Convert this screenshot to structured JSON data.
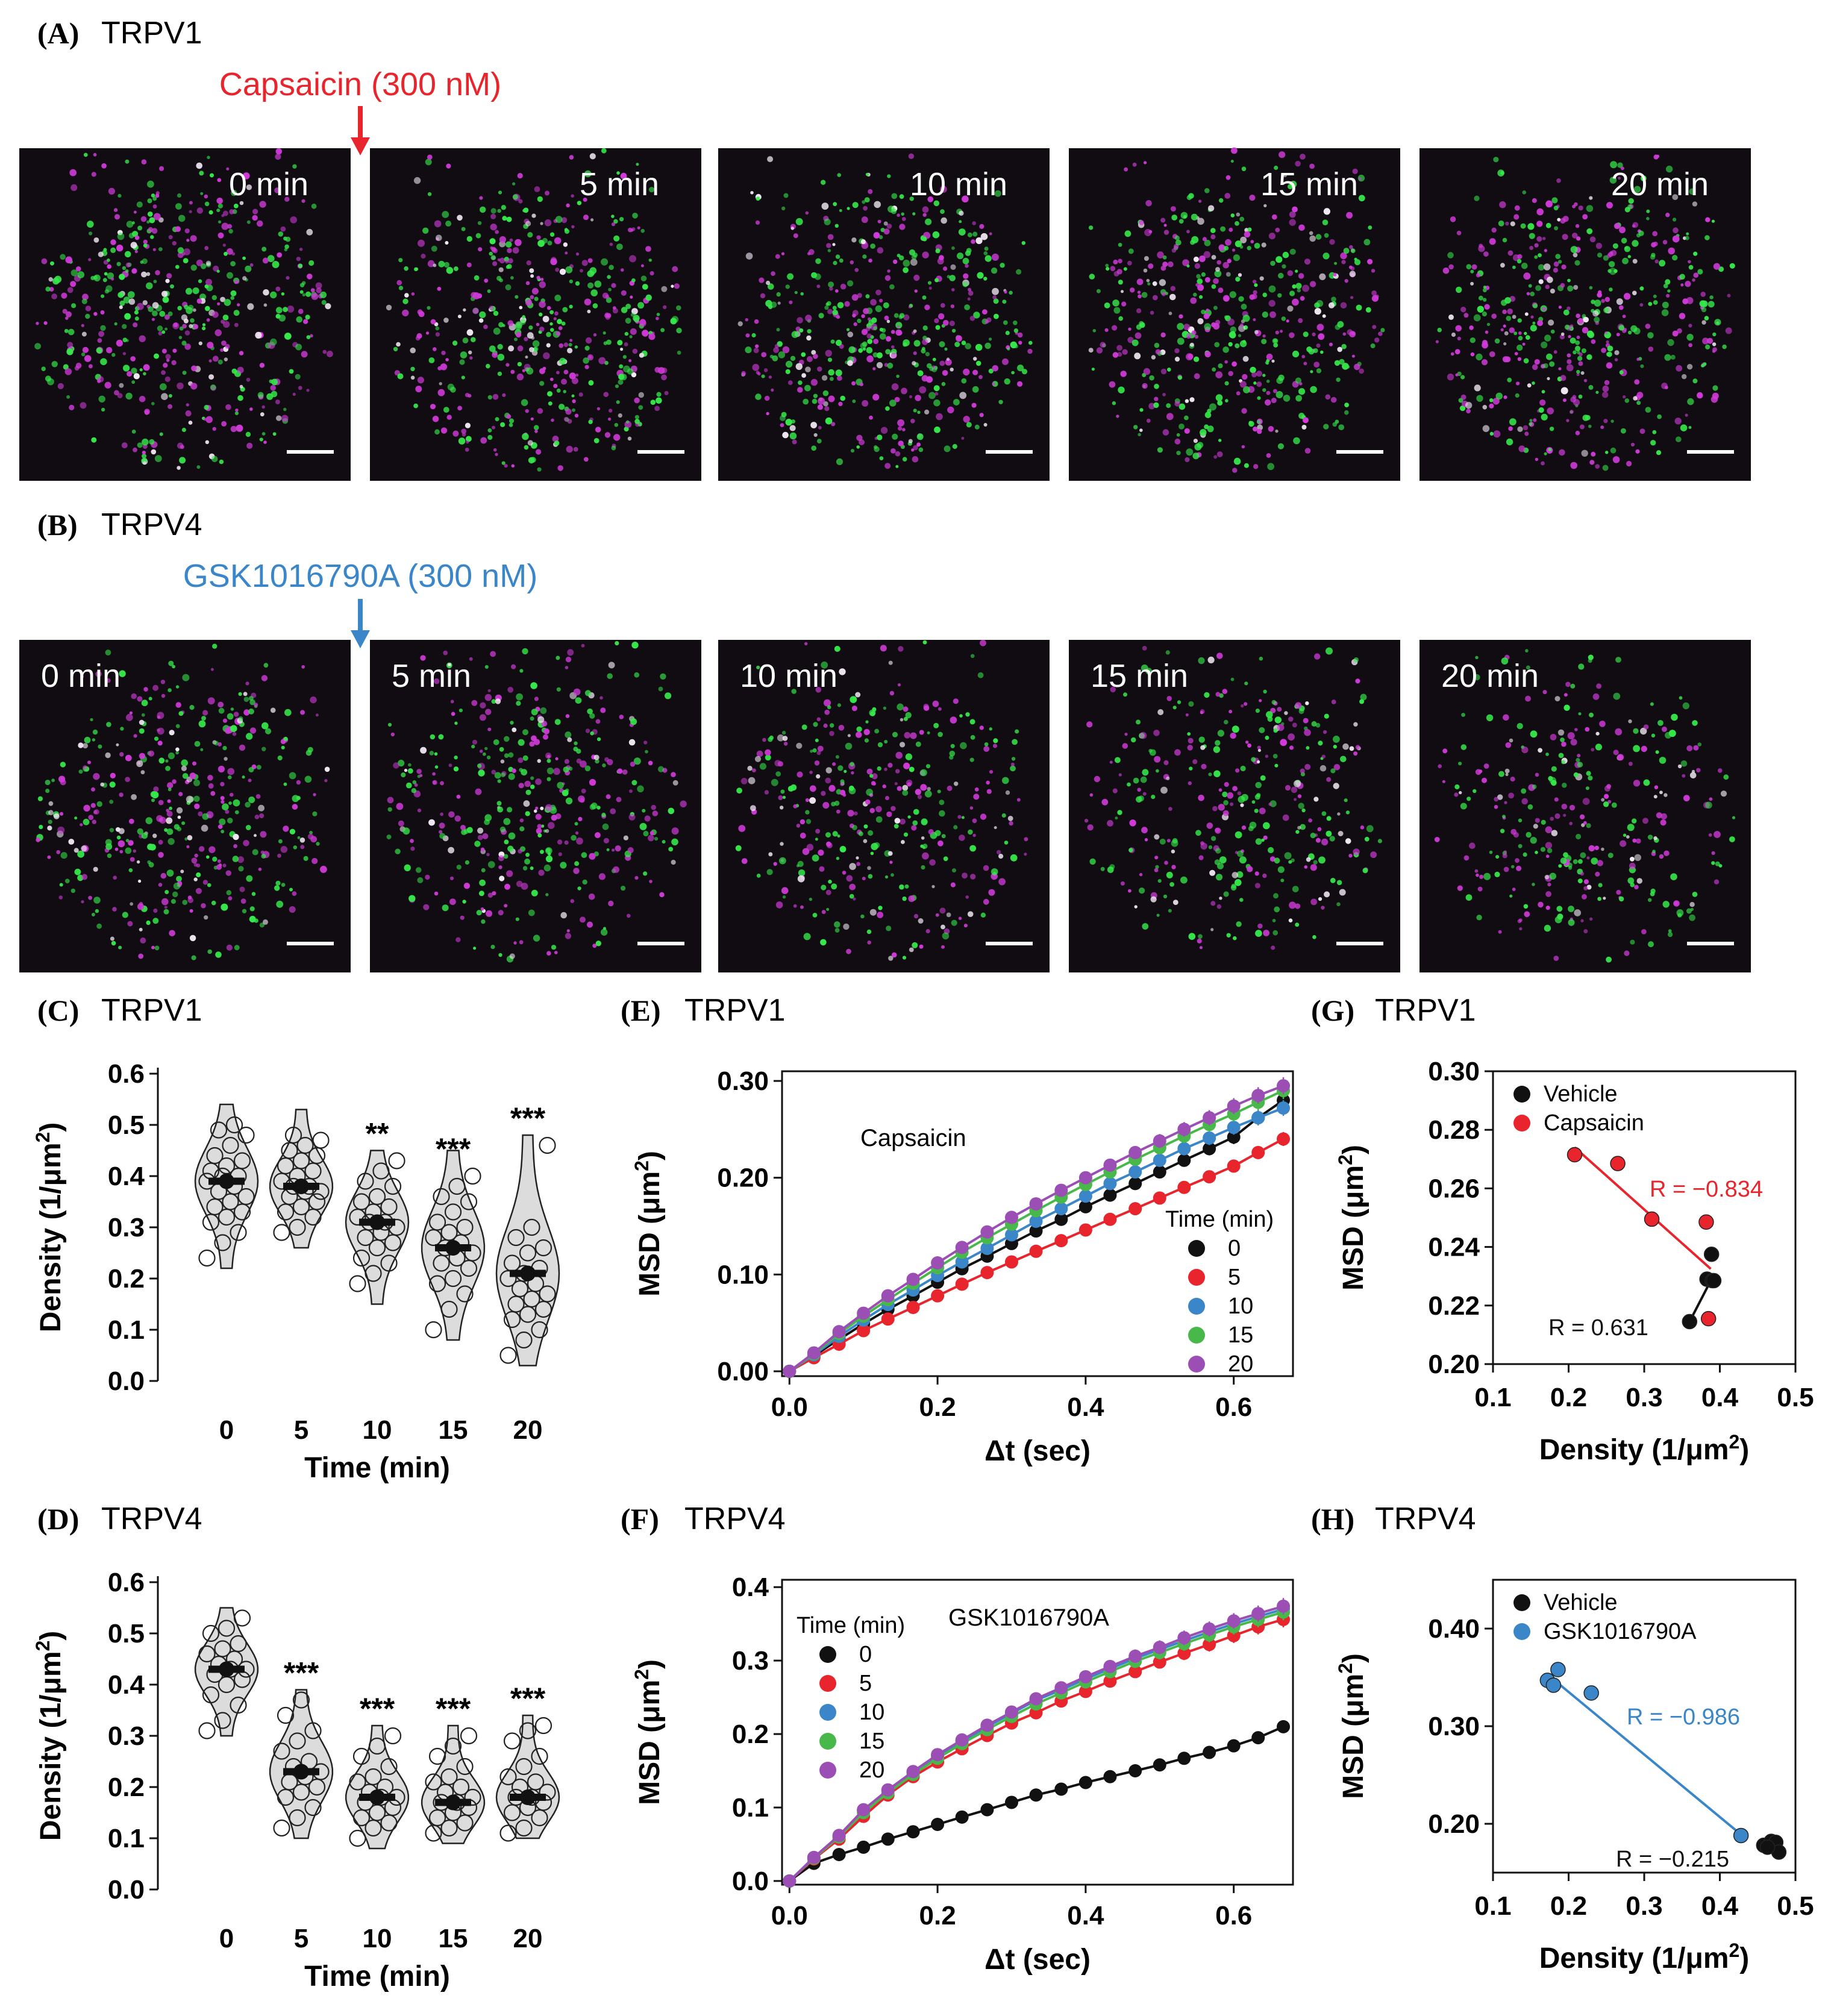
{
  "panel_a": {
    "label": "(A)",
    "title": "TRPV1",
    "stimulus": "Capsaicin (300 nM)",
    "stimulus_color": "#e8242c",
    "frames": [
      "0 min",
      "5 min",
      "10 min",
      "15 min",
      "20 min"
    ]
  },
  "panel_b": {
    "label": "(B)",
    "title": "TRPV4",
    "stimulus": "GSK1016790A (300 nM)",
    "stimulus_color": "#3a86c8",
    "frames": [
      "0 min",
      "5 min",
      "10 min",
      "15 min",
      "20 min"
    ]
  },
  "colors": {
    "green": "#36e84a",
    "magenta": "#d03ad8",
    "image_bg": "#100c12",
    "black": "#111111",
    "red": "#e8242c",
    "blue": "#3a86c8",
    "green_series": "#48b84a",
    "purple": "#9b4fb5"
  },
  "chart_data": [
    {
      "id": "C",
      "panel_label": "(C)",
      "panel_title": "TRPV1",
      "type": "violin",
      "xlabel": "Time (min)",
      "ylabel": "Density (1/μm²)",
      "categories": [
        "0",
        "5",
        "10",
        "15",
        "20"
      ],
      "yticks": [
        "0.0",
        "0.1",
        "0.2",
        "0.3",
        "0.4",
        "0.5",
        "0.6"
      ],
      "ylim": [
        0,
        0.6
      ],
      "means": [
        0.39,
        0.38,
        0.31,
        0.26,
        0.21
      ],
      "violin_range": [
        [
          0.22,
          0.54
        ],
        [
          0.26,
          0.53
        ],
        [
          0.15,
          0.45
        ],
        [
          0.08,
          0.45
        ],
        [
          0.03,
          0.48
        ]
      ],
      "significance": [
        "",
        "",
        "**",
        "***",
        "***"
      ],
      "points": [
        [
          0.24,
          0.27,
          0.29,
          0.31,
          0.32,
          0.33,
          0.34,
          0.35,
          0.36,
          0.37,
          0.38,
          0.39,
          0.4,
          0.4,
          0.41,
          0.42,
          0.43,
          0.44,
          0.46,
          0.48,
          0.49,
          0.5
        ],
        [
          0.29,
          0.3,
          0.32,
          0.33,
          0.34,
          0.35,
          0.36,
          0.37,
          0.37,
          0.38,
          0.38,
          0.39,
          0.4,
          0.41,
          0.42,
          0.43,
          0.44,
          0.45,
          0.46,
          0.47,
          0.48
        ],
        [
          0.19,
          0.21,
          0.23,
          0.24,
          0.26,
          0.27,
          0.28,
          0.29,
          0.3,
          0.31,
          0.31,
          0.32,
          0.33,
          0.34,
          0.35,
          0.36,
          0.38,
          0.39,
          0.41,
          0.43
        ],
        [
          0.1,
          0.14,
          0.17,
          0.19,
          0.2,
          0.22,
          0.23,
          0.24,
          0.25,
          0.26,
          0.27,
          0.28,
          0.29,
          0.3,
          0.31,
          0.33,
          0.35,
          0.36,
          0.38,
          0.4
        ],
        [
          0.05,
          0.08,
          0.1,
          0.12,
          0.13,
          0.14,
          0.15,
          0.16,
          0.17,
          0.18,
          0.19,
          0.2,
          0.21,
          0.22,
          0.23,
          0.25,
          0.26,
          0.28,
          0.3,
          0.46
        ]
      ]
    },
    {
      "id": "D",
      "panel_label": "(D)",
      "panel_title": "TRPV4",
      "type": "violin",
      "xlabel": "Time (min)",
      "ylabel": "Density (1/μm²)",
      "categories": [
        "0",
        "5",
        "10",
        "15",
        "20"
      ],
      "yticks": [
        "0.0",
        "0.1",
        "0.2",
        "0.3",
        "0.4",
        "0.5",
        "0.6"
      ],
      "ylim": [
        0,
        0.6
      ],
      "means": [
        0.43,
        0.23,
        0.18,
        0.17,
        0.18
      ],
      "violin_range": [
        [
          0.3,
          0.55
        ],
        [
          0.1,
          0.39
        ],
        [
          0.08,
          0.32
        ],
        [
          0.09,
          0.32
        ],
        [
          0.1,
          0.34
        ]
      ],
      "significance": [
        "",
        "***",
        "***",
        "***",
        "***"
      ],
      "points": [
        [
          0.31,
          0.33,
          0.36,
          0.38,
          0.4,
          0.41,
          0.42,
          0.43,
          0.43,
          0.44,
          0.45,
          0.46,
          0.47,
          0.48,
          0.5,
          0.51,
          0.53
        ],
        [
          0.12,
          0.14,
          0.16,
          0.18,
          0.19,
          0.2,
          0.21,
          0.22,
          0.23,
          0.24,
          0.25,
          0.27,
          0.29,
          0.31,
          0.34,
          0.37
        ],
        [
          0.1,
          0.12,
          0.13,
          0.14,
          0.15,
          0.16,
          0.17,
          0.18,
          0.18,
          0.19,
          0.2,
          0.21,
          0.22,
          0.24,
          0.26,
          0.28,
          0.3
        ],
        [
          0.11,
          0.12,
          0.13,
          0.14,
          0.15,
          0.16,
          0.17,
          0.17,
          0.18,
          0.19,
          0.2,
          0.21,
          0.22,
          0.24,
          0.26,
          0.28,
          0.3
        ],
        [
          0.11,
          0.12,
          0.14,
          0.15,
          0.16,
          0.17,
          0.18,
          0.18,
          0.19,
          0.2,
          0.21,
          0.22,
          0.24,
          0.26,
          0.29,
          0.31,
          0.32
        ]
      ]
    },
    {
      "id": "E",
      "panel_label": "(E)",
      "panel_title": "TRPV1",
      "type": "line",
      "xlabel": "Δt (sec)",
      "ylabel": "MSD (μm²)",
      "annotation": "Capsaicin",
      "legend_title": "Time (min)",
      "xticks": [
        "0.0",
        "0.2",
        "0.4",
        "0.6"
      ],
      "xlim": [
        -0.01,
        0.68
      ],
      "yticks": [
        "0.00",
        "0.10",
        "0.20",
        "0.30"
      ],
      "ylim": [
        -0.005,
        0.31
      ],
      "x": [
        0,
        0.033,
        0.067,
        0.1,
        0.133,
        0.167,
        0.2,
        0.233,
        0.267,
        0.3,
        0.333,
        0.367,
        0.4,
        0.433,
        0.467,
        0.5,
        0.533,
        0.567,
        0.6,
        0.633,
        0.667
      ],
      "series": [
        {
          "name": "0",
          "color": "#111111",
          "values": [
            0,
            0.016,
            0.033,
            0.049,
            0.064,
            0.078,
            0.092,
            0.106,
            0.119,
            0.132,
            0.145,
            0.157,
            0.17,
            0.182,
            0.194,
            0.206,
            0.218,
            0.23,
            0.242,
            0.262,
            0.28
          ]
        },
        {
          "name": "5",
          "color": "#e8242c",
          "values": [
            0,
            0.014,
            0.028,
            0.042,
            0.054,
            0.066,
            0.078,
            0.09,
            0.102,
            0.113,
            0.124,
            0.135,
            0.146,
            0.157,
            0.168,
            0.179,
            0.19,
            0.201,
            0.212,
            0.226,
            0.24
          ]
        },
        {
          "name": "10",
          "color": "#3a86c8",
          "values": [
            0,
            0.017,
            0.036,
            0.053,
            0.069,
            0.084,
            0.099,
            0.113,
            0.127,
            0.141,
            0.155,
            0.168,
            0.181,
            0.194,
            0.206,
            0.218,
            0.23,
            0.241,
            0.252,
            0.262,
            0.272
          ]
        },
        {
          "name": "15",
          "color": "#48b84a",
          "values": [
            0,
            0.018,
            0.039,
            0.057,
            0.074,
            0.091,
            0.107,
            0.123,
            0.138,
            0.152,
            0.166,
            0.18,
            0.193,
            0.206,
            0.219,
            0.231,
            0.243,
            0.255,
            0.266,
            0.278,
            0.29
          ]
        },
        {
          "name": "20",
          "color": "#9b4fb5",
          "values": [
            0,
            0.019,
            0.041,
            0.06,
            0.078,
            0.095,
            0.112,
            0.128,
            0.144,
            0.159,
            0.173,
            0.187,
            0.2,
            0.213,
            0.226,
            0.238,
            0.25,
            0.262,
            0.274,
            0.285,
            0.295
          ]
        }
      ]
    },
    {
      "id": "F",
      "panel_label": "(F)",
      "panel_title": "TRPV4",
      "type": "line",
      "xlabel": "Δt (sec)",
      "ylabel": "MSD (μm²)",
      "annotation": "GSK1016790A",
      "legend_title": "Time (min)",
      "xticks": [
        "0.0",
        "0.2",
        "0.4",
        "0.6"
      ],
      "xlim": [
        -0.01,
        0.68
      ],
      "yticks": [
        "0.0",
        "0.1",
        "0.2",
        "0.3",
        "0.4"
      ],
      "ylim": [
        -0.005,
        0.41
      ],
      "x": [
        0,
        0.033,
        0.067,
        0.1,
        0.133,
        0.167,
        0.2,
        0.233,
        0.267,
        0.3,
        0.333,
        0.367,
        0.4,
        0.433,
        0.467,
        0.5,
        0.533,
        0.567,
        0.6,
        0.633,
        0.667
      ],
      "series": [
        {
          "name": "0",
          "color": "#111111",
          "values": [
            0,
            0.024,
            0.036,
            0.046,
            0.057,
            0.067,
            0.077,
            0.087,
            0.097,
            0.107,
            0.117,
            0.125,
            0.134,
            0.142,
            0.15,
            0.158,
            0.167,
            0.175,
            0.184,
            0.195,
            0.21
          ]
        },
        {
          "name": "5",
          "color": "#e8242c",
          "values": [
            0,
            0.03,
            0.057,
            0.088,
            0.117,
            0.142,
            0.162,
            0.18,
            0.198,
            0.215,
            0.229,
            0.245,
            0.258,
            0.272,
            0.285,
            0.298,
            0.31,
            0.322,
            0.334,
            0.346,
            0.356
          ]
        },
        {
          "name": "10",
          "color": "#3a86c8",
          "values": [
            0,
            0.032,
            0.061,
            0.096,
            0.123,
            0.148,
            0.17,
            0.19,
            0.21,
            0.228,
            0.246,
            0.26,
            0.275,
            0.289,
            0.303,
            0.315,
            0.327,
            0.339,
            0.35,
            0.36,
            0.37
          ]
        },
        {
          "name": "15",
          "color": "#48b84a",
          "values": [
            0,
            0.031,
            0.06,
            0.093,
            0.12,
            0.145,
            0.167,
            0.187,
            0.206,
            0.224,
            0.241,
            0.256,
            0.271,
            0.285,
            0.299,
            0.311,
            0.323,
            0.335,
            0.346,
            0.356,
            0.366
          ]
        },
        {
          "name": "20",
          "color": "#9b4fb5",
          "values": [
            0,
            0.032,
            0.062,
            0.097,
            0.124,
            0.149,
            0.172,
            0.192,
            0.212,
            0.23,
            0.248,
            0.263,
            0.278,
            0.292,
            0.306,
            0.318,
            0.331,
            0.343,
            0.354,
            0.364,
            0.374
          ]
        }
      ]
    },
    {
      "id": "G",
      "panel_label": "(G)",
      "panel_title": "TRPV1",
      "type": "scatter",
      "xlabel": "Density (1/μm²)",
      "ylabel": "MSD (μm²)",
      "xticks": [
        "0.1",
        "0.2",
        "0.3",
        "0.4",
        "0.5"
      ],
      "xlim": [
        0.1,
        0.5
      ],
      "yticks": [
        "0.20",
        "0.22",
        "0.24",
        "0.26",
        "0.28",
        "0.30"
      ],
      "ylim": [
        0.2,
        0.3
      ],
      "series": [
        {
          "name": "Vehicle",
          "color": "#111111",
          "r_label": "R = 0.631",
          "points": [
            [
              0.36,
              0.2145
            ],
            [
              0.383,
              0.229
            ],
            [
              0.389,
              0.2375
            ],
            [
              0.39,
              0.2285
            ],
            [
              0.392,
              0.2285
            ]
          ],
          "fit": [
            [
              0.36,
              0.2145
            ],
            [
              0.39,
              0.2295
            ]
          ]
        },
        {
          "name": "Capsaicin",
          "color": "#e8242c",
          "r_label": "R = −0.834",
          "points": [
            [
              0.208,
              0.2715
            ],
            [
              0.265,
              0.2685
            ],
            [
              0.31,
              0.2495
            ],
            [
              0.382,
              0.2485
            ],
            [
              0.385,
              0.2155
            ]
          ],
          "fit": [
            [
              0.208,
              0.274
            ],
            [
              0.388,
              0.2325
            ]
          ]
        }
      ]
    },
    {
      "id": "H",
      "panel_label": "(H)",
      "panel_title": "TRPV4",
      "type": "scatter",
      "xlabel": "Density (1/μm²)",
      "ylabel": "MSD (μm²)",
      "xticks": [
        "0.1",
        "0.2",
        "0.3",
        "0.4",
        "0.5"
      ],
      "xlim": [
        0.1,
        0.5
      ],
      "yticks": [
        "0.20",
        "0.30",
        "0.40"
      ],
      "ylim": [
        0.15,
        0.45
      ],
      "series": [
        {
          "name": "Vehicle",
          "color": "#111111",
          "r_label": "R = −0.215",
          "points": [
            [
              0.458,
              0.178
            ],
            [
              0.468,
              0.182
            ],
            [
              0.474,
              0.181
            ],
            [
              0.478,
              0.171
            ],
            [
              0.463,
              0.176
            ]
          ],
          "fit": [
            [
              0.455,
              0.18
            ],
            [
              0.48,
              0.176
            ]
          ]
        },
        {
          "name": "GSK1016790A",
          "color": "#3a86c8",
          "r_label": "R = −0.986",
          "points": [
            [
              0.172,
              0.347
            ],
            [
              0.18,
              0.342
            ],
            [
              0.186,
              0.358
            ],
            [
              0.23,
              0.334
            ],
            [
              0.428,
              0.188
            ]
          ],
          "fit": [
            [
              0.172,
              0.353
            ],
            [
              0.428,
              0.189
            ]
          ]
        }
      ]
    }
  ]
}
